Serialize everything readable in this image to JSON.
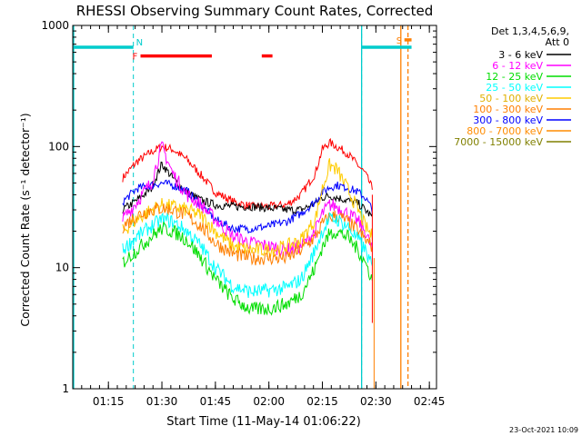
{
  "chart_data": {
    "type": "line",
    "title": "RHESSI Observing Summary Count Rates, Corrected",
    "xlabel": "Start Time (11-May-14 01:06:22)",
    "ylabel": "Corrected Count Rate (s⁻¹ detector⁻¹)",
    "y_scale": "log",
    "ylim": [
      1,
      1000
    ],
    "xlim_minutes": [
      0,
      102
    ],
    "x_ticks": [
      {
        "m": 10,
        "label": "01:15"
      },
      {
        "m": 25,
        "label": "01:30"
      },
      {
        "m": 40,
        "label": "01:45"
      },
      {
        "m": 55,
        "label": "02:00"
      },
      {
        "m": 70,
        "label": "02:15"
      },
      {
        "m": 85,
        "label": "02:30"
      },
      {
        "m": 100,
        "label": "02:45"
      }
    ],
    "y_ticks": [
      {
        "v": 1,
        "label": "1"
      },
      {
        "v": 10,
        "label": "10"
      },
      {
        "v": 100,
        "label": "100"
      },
      {
        "v": 1000,
        "label": "1000"
      }
    ],
    "legend": {
      "position": "right",
      "header": [
        "Det 1,3,4,5,6,9,",
        "Att 0"
      ],
      "entries": [
        {
          "label": "3 - 6 keV",
          "color": "#000000"
        },
        {
          "label": "6 - 12 keV",
          "color": "#ff00ff"
        },
        {
          "label": "12 - 25 keV",
          "color": "#00dd00"
        },
        {
          "label": "25 - 50 keV",
          "color": "#00ffff"
        },
        {
          "label": "50 - 100 keV",
          "color": "#ffcc00"
        },
        {
          "label": "100 - 300 keV",
          "color": "#ff7f00"
        },
        {
          "label": "300 - 800 keV",
          "color": "#0000ff"
        },
        {
          "label": "800 - 7000 keV",
          "color": "#ff8c00"
        },
        {
          "label": "7000 - 15000 keV",
          "color": "#808000"
        }
      ]
    },
    "flags": [
      {
        "label": "F",
        "color": "#ff0000",
        "y": 560,
        "segments": [
          [
            19,
            39
          ],
          [
            53,
            56
          ]
        ]
      },
      {
        "label": "N",
        "color": "#00cccc",
        "y": 660,
        "segments": [
          [
            0,
            17
          ],
          [
            81,
            95
          ]
        ]
      },
      {
        "label": "S",
        "color": "#ff7f00",
        "y": 760,
        "segments": [
          [
            93,
            95
          ]
        ]
      }
    ],
    "night_lines": [
      17,
      81
    ],
    "end_lines": [
      92,
      94
    ],
    "series": [
      {
        "color": "#ff0000",
        "x": [
          14,
          18,
          22,
          25,
          28,
          32,
          36,
          40,
          45,
          50,
          55,
          60,
          64,
          68,
          70,
          72,
          74,
          77,
          80,
          82,
          84
        ],
        "y": [
          55,
          75,
          90,
          100,
          95,
          78,
          58,
          42,
          35,
          32,
          32,
          33,
          40,
          60,
          95,
          108,
          100,
          88,
          70,
          60,
          45
        ]
      },
      {
        "color": "#000000",
        "x": [
          14,
          18,
          22,
          25,
          28,
          32,
          36,
          40,
          45,
          50,
          55,
          60,
          64,
          68,
          70,
          72,
          74,
          77,
          80,
          82,
          84
        ],
        "y": [
          30,
          36,
          45,
          72,
          55,
          42,
          36,
          33,
          32,
          32,
          31,
          30,
          30,
          34,
          38,
          39,
          38,
          36,
          34,
          30,
          26
        ]
      },
      {
        "color": "#0000ff",
        "x": [
          14,
          18,
          22,
          25,
          28,
          32,
          36,
          40,
          45,
          50,
          55,
          60,
          64,
          68,
          70,
          72,
          74,
          77,
          80,
          82,
          84
        ],
        "y": [
          35,
          45,
          48,
          50,
          48,
          43,
          33,
          25,
          21,
          21,
          22,
          24,
          28,
          35,
          42,
          46,
          48,
          46,
          42,
          38,
          30
        ]
      },
      {
        "color": "#ff00ff",
        "x": [
          14,
          18,
          22,
          24,
          25,
          26,
          28,
          32,
          36,
          40,
          45,
          50,
          55,
          60,
          64,
          68,
          70,
          72,
          74,
          77,
          80,
          82,
          84
        ],
        "y": [
          25,
          35,
          50,
          80,
          100,
          85,
          60,
          40,
          33,
          25,
          18,
          16,
          15,
          14,
          15,
          20,
          28,
          33,
          32,
          28,
          24,
          20,
          14
        ]
      },
      {
        "color": "#ffcc00",
        "x": [
          14,
          18,
          22,
          25,
          28,
          32,
          36,
          40,
          45,
          50,
          55,
          60,
          64,
          68,
          70,
          72,
          74,
          77,
          80,
          82,
          84
        ],
        "y": [
          20,
          25,
          30,
          33,
          32,
          30,
          27,
          20,
          15,
          14,
          14,
          15,
          17,
          25,
          45,
          70,
          65,
          45,
          30,
          22,
          18
        ]
      },
      {
        "color": "#ff7f00",
        "x": [
          14,
          18,
          22,
          25,
          28,
          32,
          36,
          40,
          45,
          50,
          55,
          60,
          64,
          68,
          70,
          72,
          74,
          77,
          80,
          82,
          84
        ],
        "y": [
          22,
          27,
          30,
          31,
          30,
          27,
          22,
          16,
          13,
          12,
          12,
          12,
          14,
          18,
          23,
          26,
          27,
          24,
          20,
          17,
          15
        ]
      },
      {
        "color": "#00ffff",
        "x": [
          14,
          18,
          22,
          25,
          28,
          32,
          36,
          40,
          45,
          50,
          55,
          60,
          64,
          68,
          70,
          72,
          74,
          77,
          80,
          82,
          84
        ],
        "y": [
          14,
          18,
          22,
          25,
          24,
          20,
          15,
          10,
          7,
          6.3,
          6.5,
          6.8,
          8,
          14,
          20,
          25,
          25,
          22,
          17,
          14,
          10
        ]
      },
      {
        "color": "#00dd00",
        "x": [
          14,
          18,
          22,
          25,
          28,
          32,
          36,
          40,
          45,
          50,
          55,
          60,
          64,
          68,
          70,
          72,
          74,
          77,
          80,
          82,
          84
        ],
        "y": [
          11,
          14,
          18,
          21,
          20,
          17,
          12,
          8,
          5.5,
          4.5,
          4.6,
          5,
          6,
          10,
          15,
          19,
          20,
          18,
          14,
          11,
          8
        ]
      }
    ],
    "corner_stamp": "23-Oct-2021 10:09"
  }
}
